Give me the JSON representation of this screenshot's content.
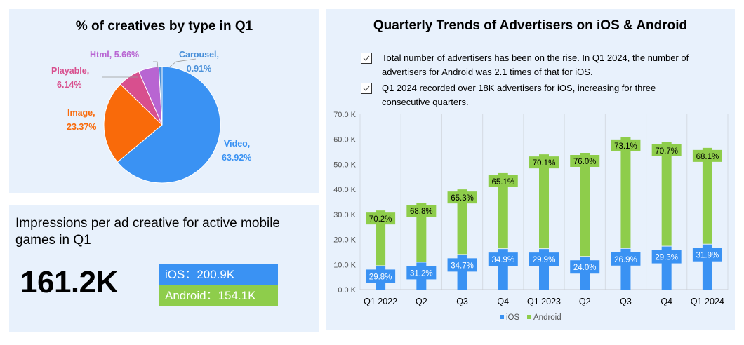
{
  "pie_panel": {
    "title": "% of creatives by type in Q1",
    "chart_data": {
      "type": "pie",
      "title": "% of creatives by type in Q1",
      "slices": [
        {
          "name": "Video",
          "value": 63.92,
          "label": "Video,",
          "pct": "63.92%",
          "color": "#3a92f3"
        },
        {
          "name": "Image",
          "value": 23.37,
          "label": "Image,",
          "pct": "23.37%",
          "color": "#f96a0a"
        },
        {
          "name": "Playable",
          "value": 6.14,
          "label": "Playable,",
          "pct": "6.14%",
          "color": "#d84f8e"
        },
        {
          "name": "Html",
          "value": 5.66,
          "label": "Html, 5.66%",
          "pct": "",
          "color": "#b865d2"
        },
        {
          "name": "Carousel",
          "value": 0.91,
          "label": "Carousel,",
          "pct": "0.91%",
          "color": "#4a90d9"
        }
      ]
    }
  },
  "impressions_panel": {
    "title": "Impressions per ad creative for active mobile games in Q1",
    "total": "161.2K",
    "ios_label": "iOS：200.9K",
    "android_label": "Android：154.1K",
    "ios_color": "#3a92f3",
    "android_color": "#8ecd4b"
  },
  "trend_panel": {
    "title": "Quarterly Trends of Advertisers on iOS & Android",
    "notes": [
      "Total number of advertisers has been on the rise. In Q1 2024, the number of advertisers for Android was 2.1 times of that for iOS.",
      "Q1 2024 recorded over 18K advertisers for iOS, increasing for three consecutive quarters."
    ]
  },
  "chart_data": {
    "type": "bar",
    "stacked": true,
    "title": "Quarterly Trends of Advertisers on iOS & Android",
    "categories": [
      "Q1 2022",
      "Q2",
      "Q3",
      "Q4",
      "Q1 2023",
      "Q2",
      "Q3",
      "Q4",
      "Q1 2024"
    ],
    "ylim": [
      0,
      70
    ],
    "yticks": [
      "0.0 K",
      "10.0 K",
      "20.0 K",
      "30.0 K",
      "40.0 K",
      "50.0 K",
      "60.0 K",
      "70.0 K"
    ],
    "yunit": "K",
    "grid": "vertical",
    "legend": "bottom-center",
    "series": [
      {
        "name": "iOS",
        "color": "#3a92f3",
        "values": [
          9.4,
          10.8,
          13.9,
          16.2,
          16.2,
          13.1,
          16.3,
          17.2,
          18.0
        ],
        "labels": [
          "29.8%",
          "31.2%",
          "34.7%",
          "34.9%",
          "29.9%",
          "24.0%",
          "26.9%",
          "29.3%",
          "31.9%"
        ]
      },
      {
        "name": "Android",
        "color": "#8ecd4b",
        "values": [
          22.2,
          23.9,
          26.1,
          30.3,
          37.8,
          41.5,
          44.5,
          41.6,
          38.6
        ],
        "labels": [
          "70.2%",
          "68.8%",
          "65.3%",
          "65.1%",
          "70.1%",
          "76.0%",
          "73.1%",
          "70.7%",
          "68.1%"
        ]
      }
    ]
  }
}
